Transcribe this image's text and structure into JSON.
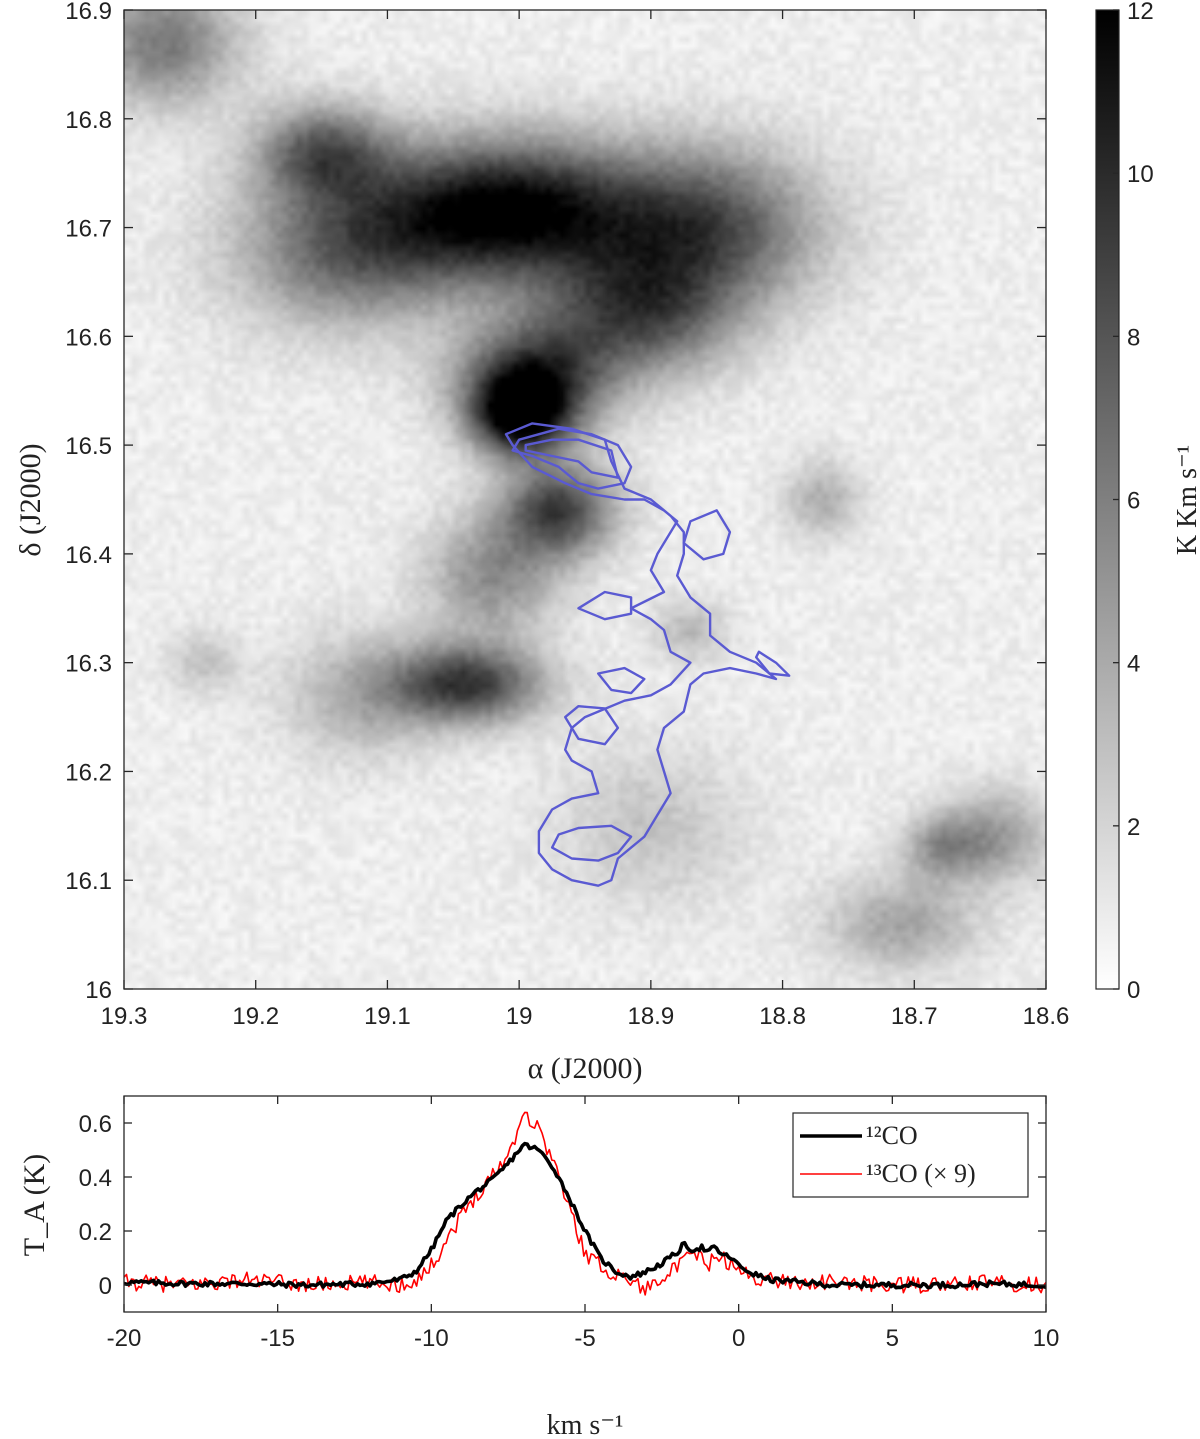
{
  "chart_data": [
    {
      "type": "heatmap",
      "x_label": "α (J2000)",
      "y_label": "δ (J2000)",
      "xlim": [
        19.3,
        18.6
      ],
      "ylim": [
        16.0,
        16.9
      ],
      "x_ticks": [
        19.3,
        19.2,
        19.1,
        19.0,
        18.9,
        18.8,
        18.7,
        18.6
      ],
      "x_tick_labels": [
        "19.3",
        "19.2",
        "19.1",
        "19",
        "18.9",
        "18.8",
        "18.7",
        "18.6"
      ],
      "y_ticks": [
        16.0,
        16.1,
        16.2,
        16.3,
        16.4,
        16.5,
        16.6,
        16.7,
        16.8,
        16.9
      ],
      "y_tick_labels": [
        "16",
        "16.1",
        "16.2",
        "16.3",
        "16.4",
        "16.5",
        "16.6",
        "16.7",
        "16.8",
        "16.9"
      ],
      "colorbar": {
        "label": "K Km s⁻¹",
        "range": [
          0,
          12
        ],
        "ticks": [
          0,
          2,
          4,
          6,
          8,
          10,
          12
        ],
        "tick_labels": [
          "0",
          "2",
          "4",
          "6",
          "8",
          "10",
          "12"
        ],
        "colormap": "white-to-black"
      },
      "intensity_peaks": [
        {
          "ra": 19.27,
          "dec": 16.87,
          "peak": 5.5,
          "sx": 0.04,
          "sy": 0.04
        },
        {
          "ra": 19.15,
          "dec": 16.77,
          "peak": 6.5,
          "sx": 0.035,
          "sy": 0.03
        },
        {
          "ra": 19.01,
          "dec": 16.715,
          "peak": 11.5,
          "sx": 0.07,
          "sy": 0.045
        },
        {
          "ra": 19.13,
          "dec": 16.68,
          "peak": 6.0,
          "sx": 0.06,
          "sy": 0.05
        },
        {
          "ra": 18.86,
          "dec": 16.7,
          "peak": 7.5,
          "sx": 0.06,
          "sy": 0.05
        },
        {
          "ra": 18.91,
          "dec": 16.62,
          "peak": 7.0,
          "sx": 0.05,
          "sy": 0.04
        },
        {
          "ra": 18.99,
          "dec": 16.56,
          "peak": 9.0,
          "sx": 0.04,
          "sy": 0.035
        },
        {
          "ra": 19.0,
          "dec": 16.525,
          "peak": 9.5,
          "sx": 0.025,
          "sy": 0.025
        },
        {
          "ra": 18.97,
          "dec": 16.44,
          "peak": 8.0,
          "sx": 0.03,
          "sy": 0.03
        },
        {
          "ra": 19.02,
          "dec": 16.38,
          "peak": 4.5,
          "sx": 0.035,
          "sy": 0.04
        },
        {
          "ra": 19.04,
          "dec": 16.28,
          "peak": 8.5,
          "sx": 0.04,
          "sy": 0.025
        },
        {
          "ra": 19.12,
          "dec": 16.27,
          "peak": 3.0,
          "sx": 0.04,
          "sy": 0.04
        },
        {
          "ra": 19.24,
          "dec": 16.3,
          "peak": 2.0,
          "sx": 0.02,
          "sy": 0.02
        },
        {
          "ra": 18.77,
          "dec": 16.45,
          "peak": 3.0,
          "sx": 0.02,
          "sy": 0.025
        },
        {
          "ra": 18.87,
          "dec": 16.33,
          "peak": 2.5,
          "sx": 0.02,
          "sy": 0.02
        },
        {
          "ra": 18.68,
          "dec": 16.13,
          "peak": 3.5,
          "sx": 0.02,
          "sy": 0.02
        },
        {
          "ra": 18.64,
          "dec": 16.14,
          "peak": 4.0,
          "sx": 0.03,
          "sy": 0.03
        },
        {
          "ra": 18.71,
          "dec": 16.06,
          "peak": 3.5,
          "sx": 0.04,
          "sy": 0.03
        },
        {
          "ra": 18.9,
          "dec": 16.15,
          "peak": 2.0,
          "sx": 0.05,
          "sy": 0.05
        }
      ],
      "background_level": 0.8,
      "contour_color": "#5a5ad2",
      "contours": [
        [
          [
            18.995,
            16.495
          ],
          [
            18.975,
            16.49
          ],
          [
            18.955,
            16.485
          ],
          [
            18.945,
            16.475
          ],
          [
            18.925,
            16.47
          ],
          [
            18.93,
            16.495
          ],
          [
            18.955,
            16.505
          ],
          [
            18.975,
            16.505
          ],
          [
            18.995,
            16.5
          ]
        ],
        [
          [
            18.99,
            16.49
          ],
          [
            18.97,
            16.48
          ],
          [
            18.955,
            16.465
          ],
          [
            18.94,
            16.46
          ],
          [
            18.92,
            16.465
          ],
          [
            18.915,
            16.48
          ],
          [
            18.925,
            16.5
          ],
          [
            18.945,
            16.51
          ],
          [
            18.97,
            16.515
          ],
          [
            19.0,
            16.505
          ],
          [
            19.005,
            16.495
          ]
        ],
        [
          [
            19.005,
            16.5
          ],
          [
            18.99,
            16.48
          ],
          [
            18.965,
            16.465
          ],
          [
            18.945,
            16.455
          ],
          [
            18.92,
            16.45
          ],
          [
            18.905,
            16.45
          ],
          [
            18.89,
            16.44
          ],
          [
            18.88,
            16.43
          ],
          [
            18.895,
            16.4
          ],
          [
            18.9,
            16.385
          ],
          [
            18.89,
            16.365
          ],
          [
            18.915,
            16.35
          ],
          [
            18.9,
            16.34
          ],
          [
            18.89,
            16.33
          ],
          [
            18.885,
            16.31
          ],
          [
            18.87,
            16.3
          ],
          [
            18.885,
            16.28
          ],
          [
            18.9,
            16.27
          ],
          [
            18.92,
            16.265
          ],
          [
            18.94,
            16.255
          ],
          [
            18.95,
            16.25
          ],
          [
            18.96,
            16.24
          ],
          [
            18.965,
            16.22
          ],
          [
            18.96,
            16.21
          ],
          [
            18.945,
            16.2
          ],
          [
            18.94,
            16.18
          ],
          [
            18.96,
            16.175
          ],
          [
            18.975,
            16.165
          ],
          [
            18.985,
            16.145
          ],
          [
            18.985,
            16.125
          ],
          [
            18.975,
            16.11
          ],
          [
            18.96,
            16.1
          ],
          [
            18.94,
            16.095
          ],
          [
            18.93,
            16.1
          ],
          [
            18.925,
            16.12
          ],
          [
            18.915,
            16.13
          ],
          [
            18.905,
            16.14
          ],
          [
            18.895,
            16.16
          ],
          [
            18.885,
            16.18
          ],
          [
            18.89,
            16.2
          ],
          [
            18.895,
            16.22
          ],
          [
            18.89,
            16.24
          ],
          [
            18.875,
            16.255
          ],
          [
            18.87,
            16.28
          ],
          [
            18.86,
            16.29
          ],
          [
            18.84,
            16.295
          ],
          [
            18.82,
            16.29
          ],
          [
            18.805,
            16.285
          ],
          [
            18.82,
            16.3
          ],
          [
            18.84,
            16.31
          ],
          [
            18.855,
            16.325
          ],
          [
            18.855,
            16.345
          ],
          [
            18.87,
            16.36
          ],
          [
            18.88,
            16.38
          ],
          [
            18.875,
            16.4
          ],
          [
            18.875,
            16.42
          ],
          [
            18.885,
            16.435
          ],
          [
            18.9,
            16.45
          ],
          [
            18.92,
            16.46
          ],
          [
            18.93,
            16.485
          ],
          [
            18.935,
            16.505
          ],
          [
            18.96,
            16.515
          ],
          [
            18.99,
            16.52
          ],
          [
            19.01,
            16.51
          ]
        ],
        [
          [
            18.975,
            16.13
          ],
          [
            18.96,
            16.12
          ],
          [
            18.94,
            16.118
          ],
          [
            18.925,
            16.125
          ],
          [
            18.915,
            16.14
          ],
          [
            18.93,
            16.15
          ],
          [
            18.955,
            16.148
          ],
          [
            18.97,
            16.142
          ]
        ],
        [
          [
            18.94,
            16.29
          ],
          [
            18.93,
            16.275
          ],
          [
            18.915,
            16.272
          ],
          [
            18.905,
            16.285
          ],
          [
            18.92,
            16.295
          ]
        ],
        [
          [
            18.965,
            16.25
          ],
          [
            18.955,
            16.23
          ],
          [
            18.935,
            16.225
          ],
          [
            18.925,
            16.24
          ],
          [
            18.935,
            16.258
          ],
          [
            18.955,
            16.26
          ]
        ],
        [
          [
            18.955,
            16.35
          ],
          [
            18.935,
            16.34
          ],
          [
            18.915,
            16.345
          ],
          [
            18.915,
            16.36
          ],
          [
            18.935,
            16.365
          ]
        ],
        [
          [
            18.875,
            16.41
          ],
          [
            18.86,
            16.395
          ],
          [
            18.845,
            16.4
          ],
          [
            18.84,
            16.42
          ],
          [
            18.85,
            16.44
          ],
          [
            18.87,
            16.43
          ]
        ],
        [
          [
            18.82,
            16.305
          ],
          [
            18.81,
            16.29
          ],
          [
            18.795,
            16.288
          ],
          [
            18.805,
            16.3
          ],
          [
            18.818,
            16.31
          ]
        ]
      ]
    },
    {
      "type": "line",
      "x_label": "km s⁻¹",
      "y_label": "T_A (K)",
      "xlim": [
        -20,
        10
      ],
      "ylim": [
        -0.1,
        0.7
      ],
      "x_ticks": [
        -20,
        -15,
        -10,
        -5,
        0,
        5,
        10
      ],
      "x_tick_labels": [
        "-20",
        "-15",
        "-10",
        "-5",
        "0",
        "5",
        "10"
      ],
      "y_ticks": [
        0,
        0.2,
        0.4,
        0.6
      ],
      "y_tick_labels": [
        "0",
        "0.2",
        "0.4",
        "0.6"
      ],
      "legend_position": "top-right",
      "series": [
        {
          "name": "¹²CO",
          "color": "#000000",
          "x": [
            -20,
            -18,
            -16,
            -14,
            -12,
            -11,
            -10.5,
            -10,
            -9.5,
            -9,
            -8.5,
            -8,
            -7.5,
            -7,
            -6.5,
            -6,
            -5.5,
            -5,
            -4.5,
            -4,
            -3.5,
            -3,
            -2.5,
            -2,
            -1.8,
            -1.5,
            -1.2,
            -1,
            -0.8,
            -0.5,
            -0.2,
            0,
            0.5,
            1,
            2,
            3,
            5,
            7,
            8,
            10
          ],
          "y": [
            0.01,
            0.005,
            0.005,
            0.0,
            0.005,
            0.02,
            0.05,
            0.13,
            0.24,
            0.3,
            0.35,
            0.39,
            0.45,
            0.52,
            0.5,
            0.43,
            0.32,
            0.2,
            0.1,
            0.05,
            0.03,
            0.05,
            0.08,
            0.12,
            0.15,
            0.13,
            0.14,
            0.12,
            0.14,
            0.11,
            0.1,
            0.07,
            0.04,
            0.02,
            0.01,
            0.0,
            0.0,
            0.0,
            0.005,
            0.0
          ]
        },
        {
          "name": "¹³CO (× 9)",
          "color": "#ff0000",
          "x": [
            -20,
            -18,
            -16,
            -14,
            -12,
            -11,
            -10.5,
            -10,
            -9.5,
            -9,
            -8.5,
            -8,
            -7.5,
            -7,
            -6.5,
            -6,
            -5.5,
            -5,
            -4.5,
            -4,
            -3.5,
            -3,
            -2.5,
            -2,
            -1.5,
            -1,
            -0.5,
            0,
            0.5,
            1,
            2,
            3,
            5,
            7,
            8,
            10
          ],
          "y": [
            0.01,
            0.0,
            0.02,
            0.0,
            0.01,
            0.0,
            0.02,
            0.07,
            0.17,
            0.26,
            0.34,
            0.41,
            0.48,
            0.64,
            0.58,
            0.45,
            0.28,
            0.12,
            0.07,
            0.04,
            0.02,
            -0.02,
            0.04,
            0.06,
            0.12,
            0.08,
            0.1,
            0.05,
            0.03,
            0.02,
            0.01,
            0.01,
            0.0,
            0.0,
            0.01,
            0.0
          ]
        }
      ]
    }
  ]
}
